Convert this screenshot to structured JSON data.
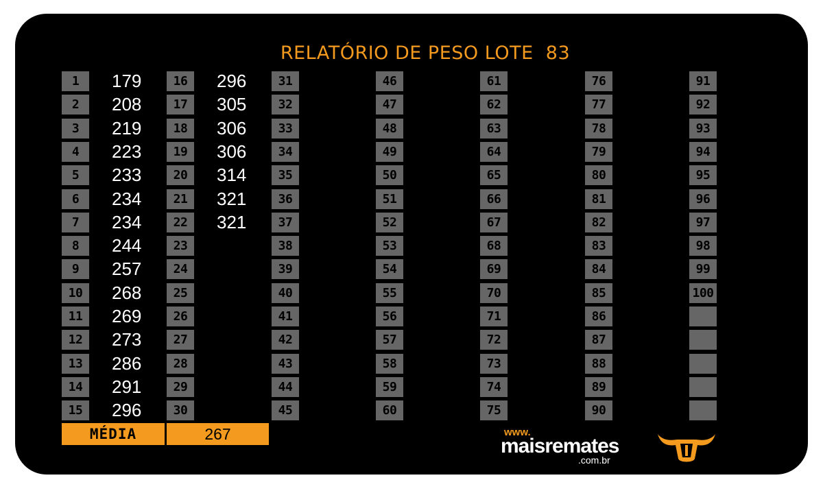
{
  "title": "RELATÓRIO DE PESO LOTE  83",
  "colors": {
    "accent": "#f39a1f",
    "cell": "#666666",
    "background": "#000000",
    "value": "#ffffff"
  },
  "labels": [
    "1",
    "2",
    "3",
    "4",
    "5",
    "6",
    "7",
    "8",
    "9",
    "10",
    "11",
    "12",
    "13",
    "14",
    "15",
    "16",
    "17",
    "18",
    "19",
    "20",
    "21",
    "22",
    "23",
    "24",
    "25",
    "26",
    "27",
    "28",
    "29",
    "30",
    "31",
    "32",
    "33",
    "34",
    "35",
    "36",
    "37",
    "38",
    "39",
    "40",
    "41",
    "42",
    "43",
    "44",
    "45",
    "46",
    "47",
    "48",
    "49",
    "50",
    "51",
    "52",
    "53",
    "54",
    "55",
    "56",
    "57",
    "58",
    "59",
    "60",
    "61",
    "62",
    "63",
    "64",
    "65",
    "66",
    "67",
    "68",
    "69",
    "70",
    "71",
    "72",
    "73",
    "74",
    "75",
    "76",
    "77",
    "78",
    "79",
    "80",
    "81",
    "82",
    "83",
    "84",
    "85",
    "86",
    "87",
    "88",
    "89",
    "90",
    "91",
    "92",
    "93",
    "94",
    "95",
    "96",
    "97",
    "98",
    "99",
    "100",
    "",
    "",
    "",
    "",
    ""
  ],
  "weights": [
    "179",
    "208",
    "219",
    "223",
    "233",
    "234",
    "234",
    "244",
    "257",
    "268",
    "269",
    "273",
    "286",
    "291",
    "296",
    "296",
    "305",
    "306",
    "306",
    "314",
    "321",
    "321"
  ],
  "summary": {
    "label": "MÉDIA",
    "value": "267"
  },
  "logo": {
    "www": "www.",
    "name": "maisremates",
    "domain": ".com.br"
  },
  "icons": [
    "bull-icon"
  ]
}
